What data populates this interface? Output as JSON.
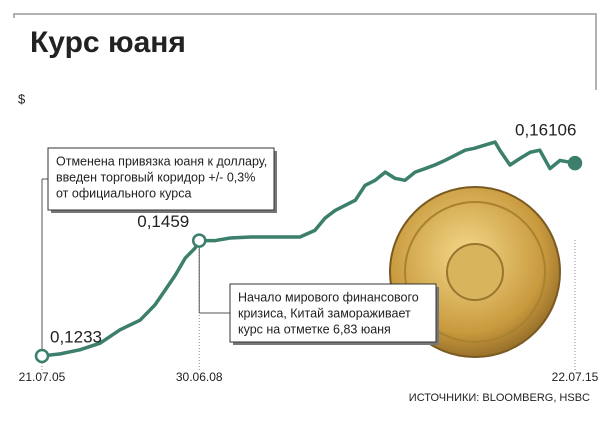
{
  "chart_data": {
    "type": "line",
    "title": "Курс юаня",
    "ylabel": "$",
    "x": [
      2005.55,
      2005.89,
      2006.26,
      2006.64,
      2007.01,
      2007.39,
      2007.67,
      2007.86,
      2008.05,
      2008.24,
      2008.42,
      2008.5,
      2008.8,
      2009.08,
      2009.46,
      2010.39,
      2010.67,
      2010.86,
      2011.05,
      2011.24,
      2011.43,
      2011.61,
      2011.8,
      2011.99,
      2012.17,
      2012.36,
      2012.55,
      2012.74,
      2012.92,
      2013.11,
      2013.3,
      2013.49,
      2013.67,
      2013.86,
      2014.05,
      2014.14,
      2014.33,
      2014.52,
      2014.71,
      2014.89,
      2015.08,
      2015.27,
      2015.55
    ],
    "series": [
      {
        "color": "#3b7f6c",
        "values": [
          0.1233,
          0.1237,
          0.1245,
          0.1258,
          0.1284,
          0.1303,
          0.1333,
          0.1362,
          0.1391,
          0.1425,
          0.1444,
          0.1459,
          0.1459,
          0.1464,
          0.1466,
          0.1466,
          0.1479,
          0.1503,
          0.1518,
          0.1528,
          0.1538,
          0.1567,
          0.1577,
          0.1593,
          0.1581,
          0.1577,
          0.1593,
          0.16,
          0.1607,
          0.1616,
          0.1626,
          0.1636,
          0.164,
          0.1646,
          0.1652,
          0.1636,
          0.1607,
          0.162,
          0.1632,
          0.1636,
          0.16,
          0.1616,
          0.16106
        ],
        "value_labels": [
          "0,1233",
          null,
          null,
          null,
          null,
          null,
          null,
          null,
          null,
          null,
          null,
          "0,1459",
          null,
          null,
          null,
          null,
          null,
          null,
          null,
          null,
          null,
          null,
          null,
          null,
          null,
          null,
          null,
          null,
          null,
          null,
          null,
          null,
          null,
          null,
          null,
          null,
          null,
          null,
          null,
          null,
          null,
          null,
          "0,16106"
        ]
      }
    ],
    "xlim": [
      2005.55,
      2015.55
    ],
    "ylim": [
      0.118,
      0.175
    ],
    "xticks": [
      {
        "value": 2005.55,
        "label": "21.07.05"
      },
      {
        "value": 2008.5,
        "label": "30.06.08"
      },
      {
        "value": 2015.55,
        "label": "22.07.15"
      }
    ],
    "annotations": [
      {
        "x": 2005.55,
        "lines": [
          "Отменена привязка юаня к доллару,",
          "введен торговый коридор +/- 0,3%",
          "от официального курса"
        ]
      },
      {
        "x": 2008.5,
        "lines": [
          "Начало мирового финансового",
          "кризиса, Китай замораживает",
          "курс на отметке 6,83 юаня"
        ]
      }
    ],
    "source": "ИСТОЧНИКИ: BLOOMBERG, HSBC"
  }
}
